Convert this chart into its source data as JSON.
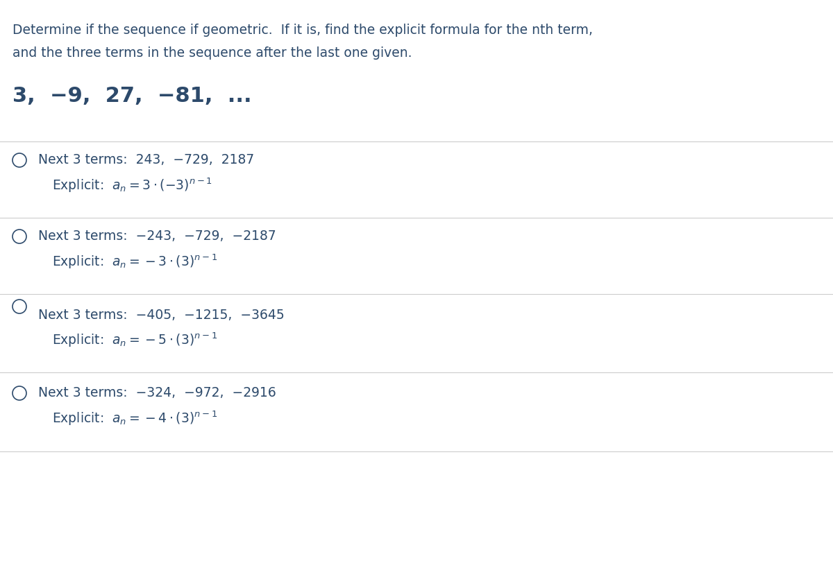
{
  "bg_color": "#ffffff",
  "text_color": "#2d4a6b",
  "line_color": "#cccccc",
  "title_text": "Determine if the sequence if geometric.  If it is, find the explicit formula for the nth term,\nand the three terms in the sequence after the last one given.",
  "sequence_text": "3,  −9,  27,  −81,  ...",
  "options": [
    {
      "has_circle": true,
      "circle_filled": false,
      "next_terms": "Next 3 terms:  243,  −729,  2187",
      "explicit": "Explicit:  $a_n = 3 \\cdot (-3)^{n-1}$"
    },
    {
      "has_circle": true,
      "circle_filled": false,
      "next_terms": "Next 3 terms:  −243,  −729,  −2187",
      "explicit": "Explicit:  $a_n = -3 \\cdot (3)^{n-1}$"
    },
    {
      "has_circle": true,
      "circle_filled": false,
      "next_terms": "Next 3 terms:  −405,  −1215,  −3645",
      "explicit": "Explicit:  $a_n = -5 \\cdot (3)^{n-1}$"
    },
    {
      "has_circle": true,
      "circle_filled": false,
      "next_terms": "Next 3 terms:  −324,  −972,  −2916",
      "explicit": "Explicit:  $a_n = -4 \\cdot (3)^{n-1}$"
    }
  ]
}
